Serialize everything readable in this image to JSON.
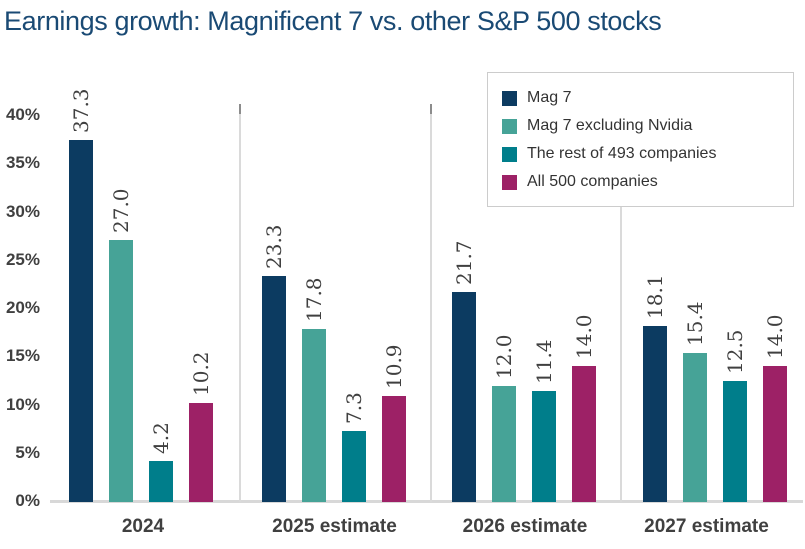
{
  "title": "Earnings growth: Magnificent 7 vs. other S&P 500 stocks",
  "legend": {
    "items": [
      {
        "label": "Mag 7",
        "color": "#0c3b61"
      },
      {
        "label": "Mag 7 excluding Nvidia",
        "color": "#46a397"
      },
      {
        "label": "The rest of 493 companies",
        "color": "#007e8b"
      },
      {
        "label": "All 500 companies",
        "color": "#9d2166"
      }
    ]
  },
  "chart_data": {
    "type": "bar",
    "title": "Earnings growth: Magnificent 7 vs. other S&P 500 stocks",
    "categories": [
      "2024",
      "2025 estimate",
      "2026 estimate",
      "2027 estimate"
    ],
    "series": [
      {
        "name": "Mag 7",
        "color": "#0c3b61",
        "values": [
          37.3,
          23.3,
          21.7,
          18.1
        ]
      },
      {
        "name": "Mag 7 excluding Nvidia",
        "color": "#46a397",
        "values": [
          27.0,
          17.8,
          12.0,
          15.4
        ]
      },
      {
        "name": "The rest of 493 companies",
        "color": "#007e8b",
        "values": [
          4.2,
          7.3,
          11.4,
          12.5
        ]
      },
      {
        "name": "All 500 companies",
        "color": "#9d2166",
        "values": [
          10.2,
          10.9,
          14.0,
          14.0
        ]
      }
    ],
    "xlabel": "",
    "ylabel": "",
    "ylim": [
      0,
      40
    ],
    "yticks": [
      "0%",
      "5%",
      "10%",
      "15%",
      "20%",
      "25%",
      "30%",
      "35%",
      "40%"
    ],
    "value_label_format": "one-decimal",
    "legend_position": "top-right",
    "grid": "vertical-group-separators",
    "accent_text_color": "#1a4a74",
    "axis_text_color": "#404040"
  }
}
